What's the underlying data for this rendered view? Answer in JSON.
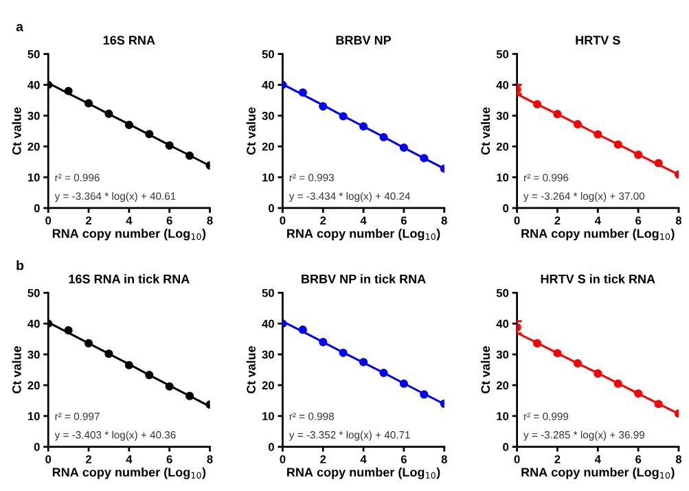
{
  "chart_data": [
    {
      "type": "scatter",
      "subtitle": "a",
      "title": "16S RNA",
      "xlabel": "RNA copy number (Log$_{10}$)",
      "ylabel": "Ct value",
      "xlim": [
        0,
        8
      ],
      "xticks": [
        0,
        2,
        4,
        6,
        8
      ],
      "ylim": [
        0,
        50
      ],
      "yticks": [
        0,
        10,
        20,
        30,
        40,
        50
      ],
      "grid": false,
      "legend": false,
      "line_style": "solid",
      "x": [
        0,
        1,
        2,
        3,
        4,
        5,
        6,
        7,
        8
      ],
      "series": [
        {
          "marker": "circle",
          "color": "#000000",
          "values": [
            40,
            38,
            34,
            30.6,
            27,
            24,
            20.3,
            17,
            13.8
          ]
        },
        {
          "type": "line",
          "color": "#000000",
          "values": [
            40.6,
            37.2,
            33.9,
            30.5,
            27.2,
            23.8,
            20.4,
            17.1,
            13.7
          ]
        }
      ],
      "annotations": [
        "r² = 0.996",
        "y = -3.364 * log(x) + 40.61"
      ]
    },
    {
      "type": "scatter",
      "title": "BRBV NP",
      "xlabel": "RNA copy number (Log$_{10}$)",
      "ylabel": "Ct value",
      "xlim": [
        0,
        8
      ],
      "xticks": [
        0,
        2,
        4,
        6,
        8
      ],
      "ylim": [
        0,
        50
      ],
      "yticks": [
        0,
        10,
        20,
        30,
        40,
        50
      ],
      "grid": false,
      "legend": false,
      "line_style": "solid",
      "x": [
        0,
        1,
        2,
        3,
        4,
        5,
        6,
        7,
        8
      ],
      "series": [
        {
          "marker": "circle",
          "color": "#0000ff",
          "values": [
            40,
            37.5,
            33,
            29.8,
            26.5,
            23,
            19.6,
            16.2,
            12.8
          ]
        },
        {
          "type": "line",
          "color": "#0000ff",
          "values": [
            40.2,
            36.8,
            33.4,
            29.9,
            26.5,
            23.1,
            19.6,
            16.2,
            12.8
          ]
        }
      ],
      "annotations": [
        "r² = 0.993",
        "y = -3.434 * log(x) + 40.24"
      ]
    },
    {
      "type": "scatter",
      "title": "HRTV S",
      "xlabel": "RNA copy number (Log$_{10}$)",
      "ylabel": "Ct value",
      "xlim": [
        0,
        8
      ],
      "xticks": [
        0,
        2,
        4,
        6,
        8
      ],
      "ylim": [
        0,
        50
      ],
      "yticks": [
        0,
        10,
        20,
        30,
        40,
        50
      ],
      "grid": false,
      "legend": false,
      "line_style": "solid",
      "x": [
        0,
        1,
        2,
        3,
        4,
        5,
        6,
        7,
        8
      ],
      "series": [
        {
          "marker": "circle",
          "color": "#ff0000",
          "values": [
            38.5,
            33.7,
            30.5,
            27.2,
            23.9,
            20.6,
            17.3,
            14.6,
            10.9
          ],
          "errors": [
            1.5,
            null,
            null,
            null,
            null,
            null,
            null,
            null,
            null
          ]
        },
        {
          "type": "line",
          "color": "#ff0000",
          "values": [
            37.0,
            33.7,
            30.5,
            27.2,
            23.9,
            20.7,
            17.4,
            14.1,
            10.9
          ]
        }
      ],
      "annotations": [
        "r² = 0.996",
        "y = -3.264 * log(x) + 37.00"
      ]
    },
    {
      "type": "scatter",
      "subtitle": "b",
      "title": "16S RNA in tick RNA",
      "xlabel": "RNA copy number (Log$_{10}$)",
      "ylabel": "Ct value",
      "xlim": [
        0,
        8
      ],
      "xticks": [
        0,
        2,
        4,
        6,
        8
      ],
      "ylim": [
        0,
        50
      ],
      "yticks": [
        0,
        10,
        20,
        30,
        40,
        50
      ],
      "grid": false,
      "legend": false,
      "line_style": "solid",
      "x": [
        0,
        1,
        2,
        3,
        4,
        5,
        6,
        7,
        8
      ],
      "series": [
        {
          "marker": "circle",
          "color": "#000000",
          "values": [
            40,
            37.8,
            33.6,
            30.2,
            26.5,
            23.3,
            19.6,
            16.5,
            13.7
          ]
        },
        {
          "type": "line",
          "color": "#000000",
          "values": [
            40.4,
            37.0,
            33.6,
            30.2,
            26.8,
            23.3,
            19.9,
            16.5,
            13.1
          ]
        }
      ],
      "annotations": [
        "r² = 0.997",
        "y = -3.403 * log(x) + 40.36"
      ]
    },
    {
      "type": "scatter",
      "title": "BRBV NP in tick RNA",
      "xlabel": "RNA copy number (Log$_{10}$)",
      "ylabel": "Ct value",
      "xlim": [
        0,
        8
      ],
      "xticks": [
        0,
        2,
        4,
        6,
        8
      ],
      "ylim": [
        0,
        50
      ],
      "yticks": [
        0,
        10,
        20,
        30,
        40,
        50
      ],
      "grid": false,
      "legend": false,
      "line_style": "solid",
      "x": [
        0,
        1,
        2,
        3,
        4,
        5,
        6,
        7,
        8
      ],
      "series": [
        {
          "marker": "circle",
          "color": "#0000ff",
          "values": [
            40,
            38,
            34,
            30.5,
            27.5,
            24,
            20.5,
            17,
            14
          ]
        },
        {
          "type": "line",
          "color": "#0000ff",
          "values": [
            40.7,
            37.4,
            34.0,
            30.6,
            27.3,
            24.0,
            20.6,
            17.2,
            13.9
          ]
        }
      ],
      "annotations": [
        "r² = 0.998",
        "y = -3.352 * log(x) + 40.71"
      ]
    },
    {
      "type": "scatter",
      "title": "HRTV S in tick RNA",
      "xlabel": "RNA copy number (Log$_{10}$)",
      "ylabel": "Ct value",
      "xlim": [
        0,
        8
      ],
      "xticks": [
        0,
        2,
        4,
        6,
        8
      ],
      "ylim": [
        0,
        50
      ],
      "yticks": [
        0,
        10,
        20,
        30,
        40,
        50
      ],
      "grid": false,
      "legend": false,
      "line_style": "solid",
      "x": [
        0,
        1,
        2,
        3,
        4,
        5,
        6,
        7,
        8
      ],
      "series": [
        {
          "marker": "circle",
          "color": "#ff0000",
          "values": [
            38.8,
            33.6,
            30.4,
            27.1,
            23.8,
            20.5,
            17.3,
            13.9,
            10.8
          ],
          "errors": [
            2,
            null,
            null,
            null,
            null,
            null,
            null,
            null,
            null
          ]
        },
        {
          "type": "line",
          "color": "#ff0000",
          "values": [
            37.0,
            33.7,
            30.4,
            27.1,
            23.9,
            20.6,
            17.3,
            14.0,
            10.7
          ]
        }
      ],
      "annotations": [
        "r² = 0.999",
        "y = -3.285 * log(x) + 36.99"
      ]
    }
  ]
}
